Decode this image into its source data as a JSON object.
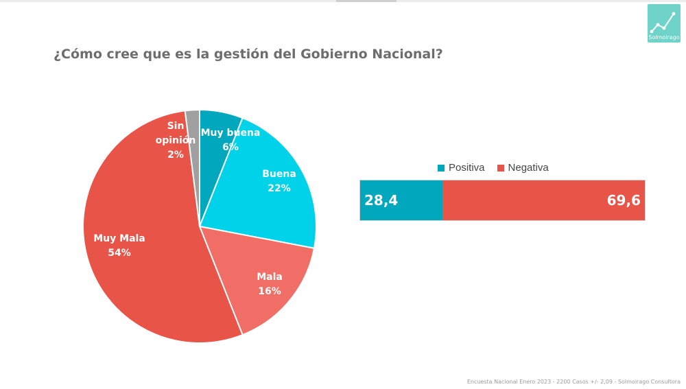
{
  "title": "¿Cómo cree que es la gestión del Gobierno Nacional?",
  "logo": {
    "text": "Solmoirago",
    "color": "#6fd3c9"
  },
  "footer": "Encuesta Nacional Enero 2023 - 2200 Casos +/- 2,09 - Solmoirago Consultora",
  "chart_data": [
    {
      "type": "pie",
      "title": "",
      "slices": [
        {
          "label": "Muy buena",
          "value": 6,
          "value_label": "6%",
          "color": "#00a7bd"
        },
        {
          "label": "Buena",
          "value": 22,
          "value_label": "22%",
          "color": "#00d2ea"
        },
        {
          "label": "Mala",
          "value": 16,
          "value_label": "16%",
          "color": "#f06e66"
        },
        {
          "label": "Muy Mala",
          "value": 54,
          "value_label": "54%",
          "color": "#e85448"
        },
        {
          "label": "Sin opinión",
          "value": 2,
          "value_label": "2%",
          "color": "#a0a0a0"
        }
      ]
    },
    {
      "type": "bar",
      "orientation": "horizontal-stacked",
      "series": [
        {
          "name": "Positiva",
          "value": 28.4,
          "value_label": "28,4",
          "color": "#00a7bd"
        },
        {
          "name": "Negativa",
          "value": 69.6,
          "value_label": "69,6",
          "color": "#e85448"
        }
      ],
      "legend": "top"
    }
  ]
}
